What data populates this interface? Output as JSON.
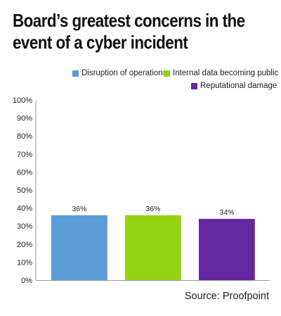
{
  "title_lines": [
    "Board’s greatest concerns in the",
    "event of a cyber incident"
  ],
  "source": "Source: Proofpoint",
  "chart_data": {
    "type": "bar",
    "title": "Board’s greatest concerns in the event of a cyber incident",
    "categories": [
      "Disruption of operations",
      "Internal data becoming public",
      "Reputational damage"
    ],
    "values": [
      36,
      36,
      34
    ],
    "data_labels": [
      "36%",
      "36%",
      "34%"
    ],
    "colors": [
      "#5b9bd5",
      "#92d411",
      "#6427a0"
    ],
    "ylim": [
      0,
      100
    ],
    "yticks": [
      "0%",
      "10%",
      "20%",
      "30%",
      "40%",
      "50%",
      "60%",
      "70%",
      "80%",
      "90%",
      "100%"
    ],
    "grid": false,
    "legend_position": "top-right"
  }
}
